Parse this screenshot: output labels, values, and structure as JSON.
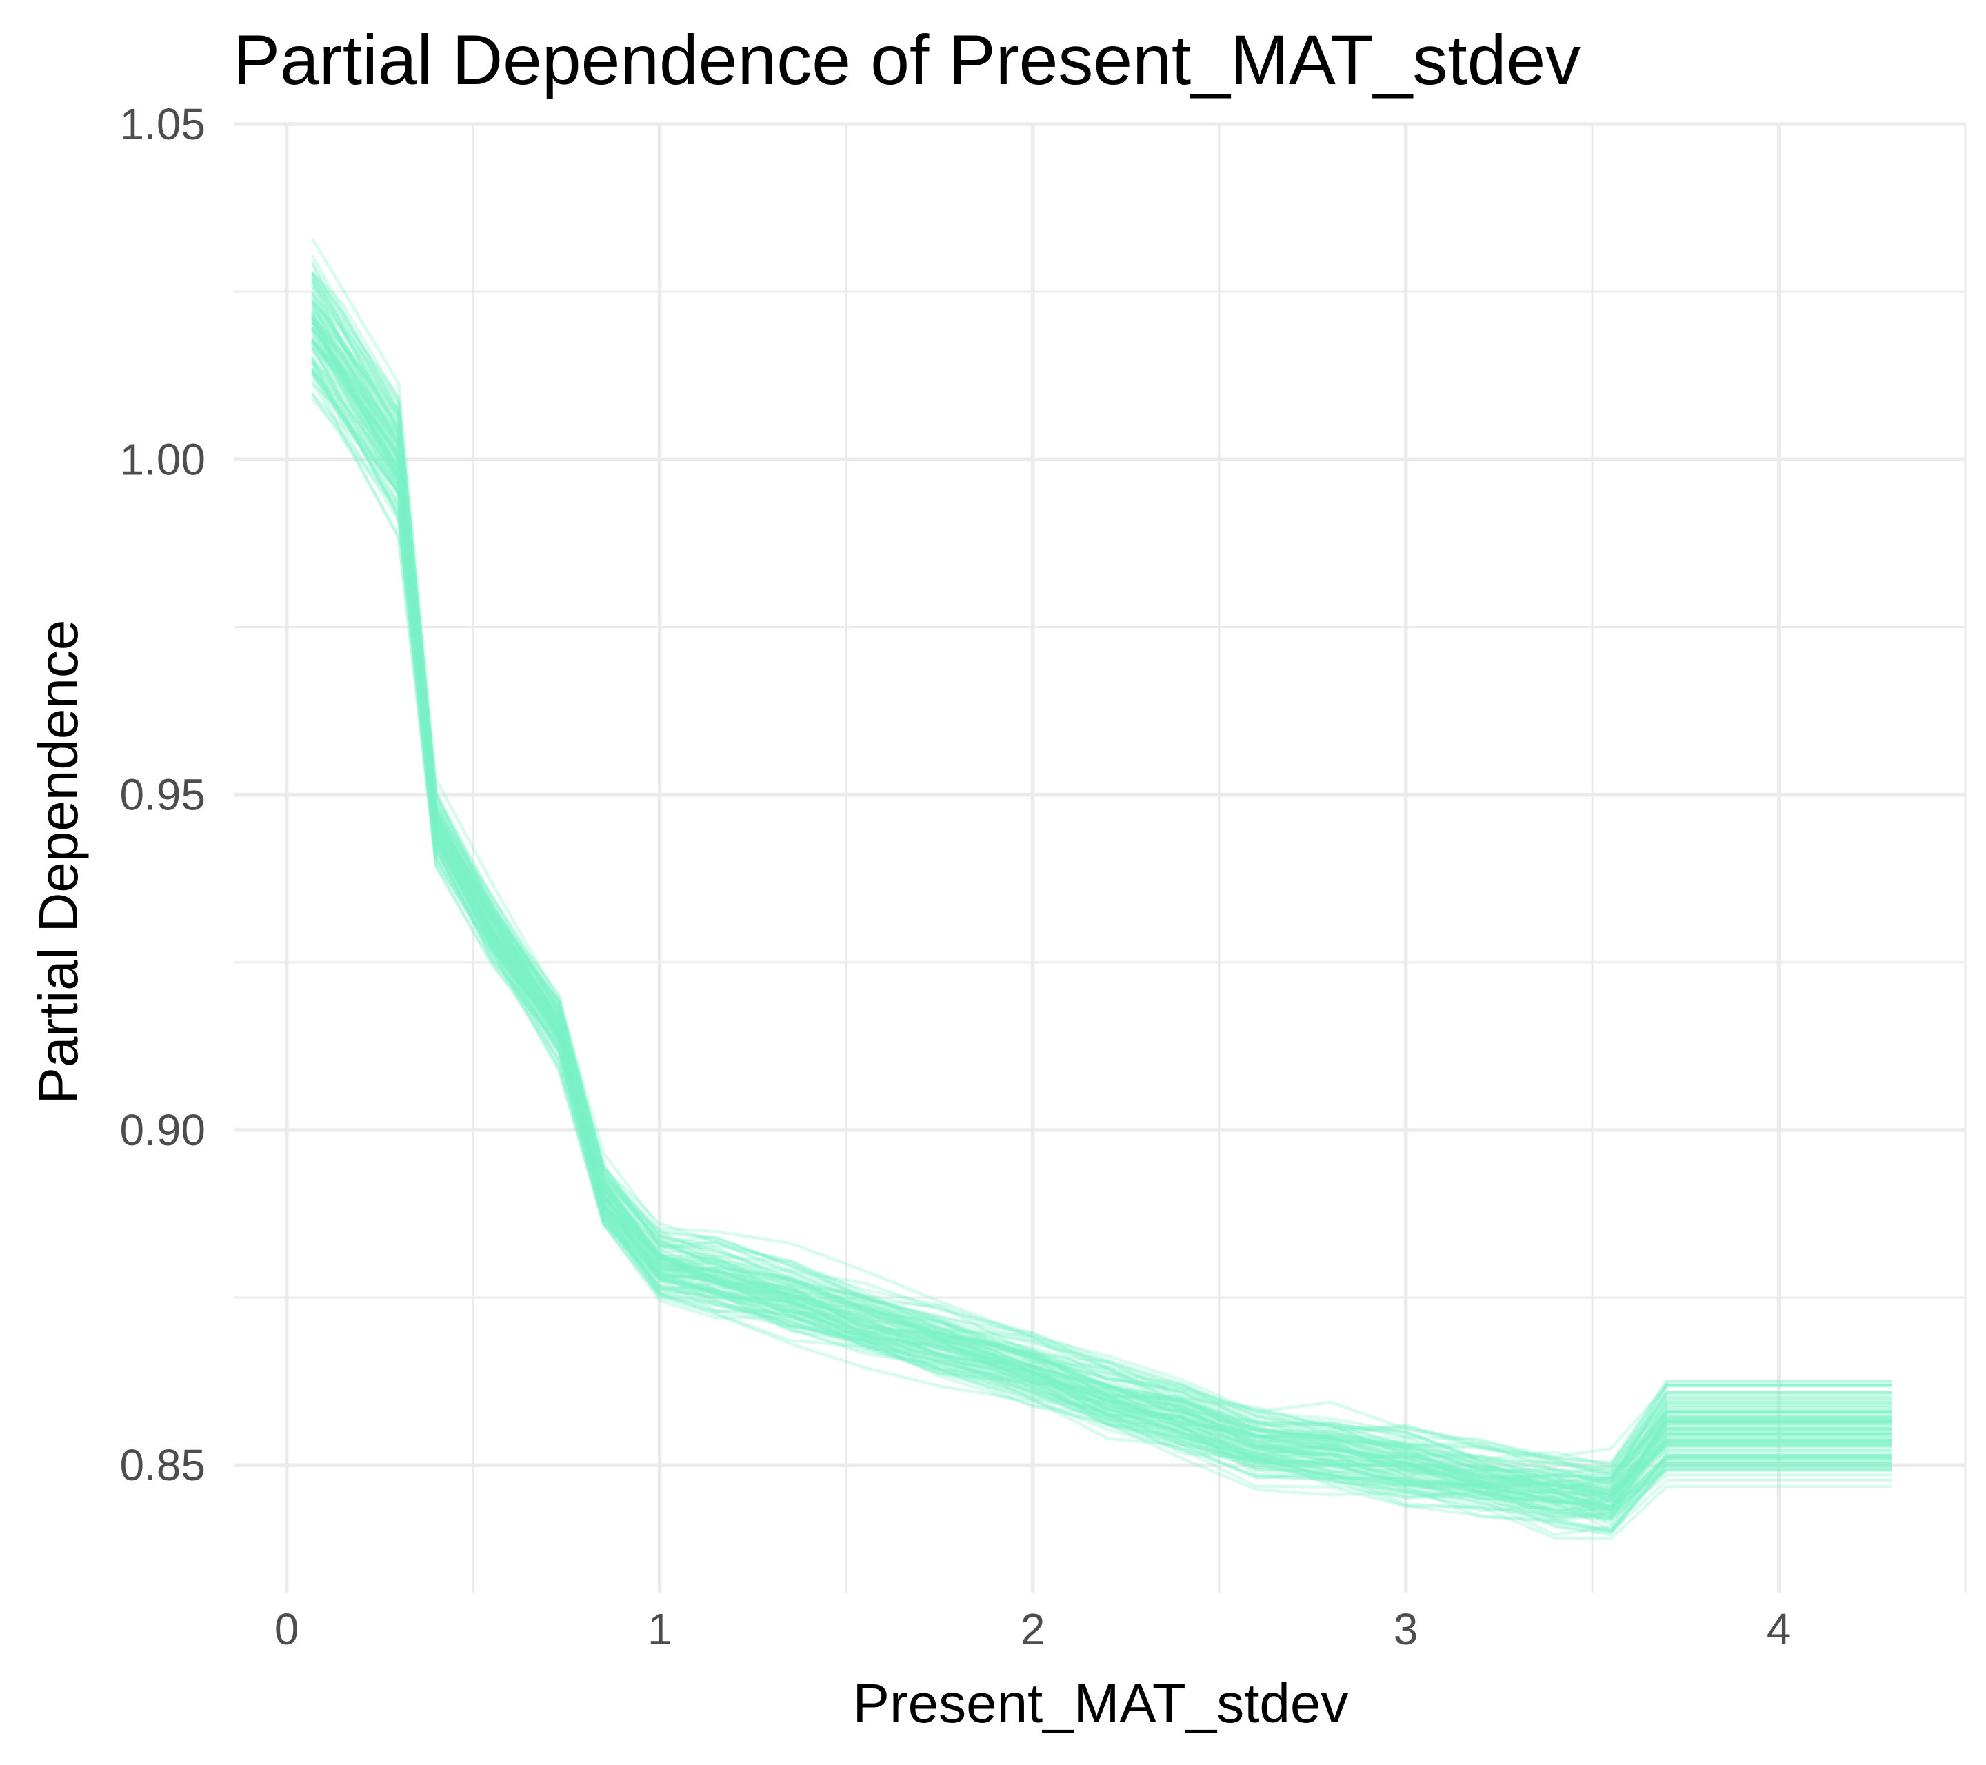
{
  "chart_data": {
    "type": "line",
    "title": "Partial Dependence of Present_MAT_stdev",
    "xlabel": "Present_MAT_stdev",
    "ylabel": "Partial Dependence",
    "xlim": [
      -0.14,
      4.5
    ],
    "ylim": [
      0.831,
      1.05
    ],
    "x_ticks": [
      0,
      1,
      2,
      3,
      4
    ],
    "x_tick_labels": [
      "0",
      "1",
      "2",
      "3",
      "4"
    ],
    "y_ticks": [
      0.85,
      0.9,
      0.95,
      1.0,
      1.05
    ],
    "y_tick_labels": [
      "0.85",
      "0.90",
      "0.95",
      "1.00",
      "1.05"
    ],
    "grid": true,
    "legend": "none",
    "line_color": "#7CF2C8",
    "line_opacity": 0.3,
    "n_series": 100,
    "x": [
      0.07,
      0.15,
      0.3,
      0.4,
      0.55,
      0.73,
      0.85,
      1.0,
      1.15,
      1.35,
      1.55,
      1.75,
      2.0,
      2.2,
      2.4,
      2.6,
      2.8,
      3.0,
      3.2,
      3.4,
      3.55,
      3.7,
      3.85,
      4.0,
      4.15,
      4.3
    ],
    "representative_series": [
      1.02,
      1.013,
      1.0,
      0.945,
      0.93,
      0.915,
      0.89,
      0.88,
      0.878,
      0.875,
      0.871,
      0.868,
      0.864,
      0.86,
      0.857,
      0.853,
      0.852,
      0.85,
      0.848,
      0.846,
      0.845,
      0.854,
      0.854,
      0.854,
      0.854,
      0.854
    ],
    "series_offset_range": [
      -0.02,
      0.02
    ],
    "final_value_range": [
      0.844,
      0.867
    ]
  }
}
